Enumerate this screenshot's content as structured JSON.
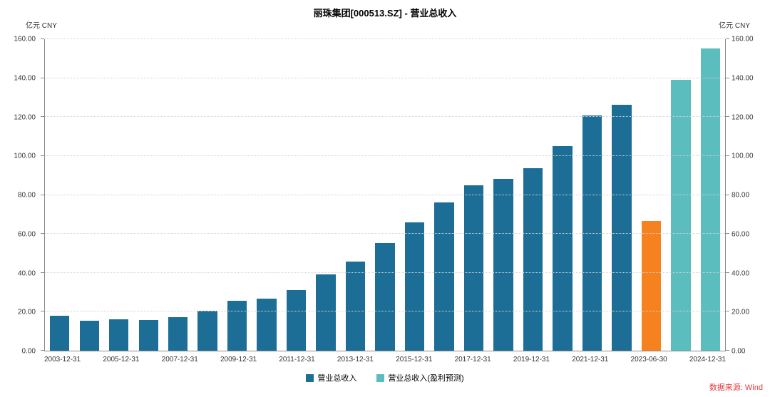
{
  "chart_data": {
    "type": "bar",
    "title": "丽珠集团[000513.SZ] - 营业总收入",
    "unit_left": "亿元 CNY",
    "unit_right": "亿元 CNY",
    "ylim": [
      0,
      160
    ],
    "yticks": [
      "0.00",
      "20.00",
      "40.00",
      "60.00",
      "80.00",
      "100.00",
      "120.00",
      "140.00",
      "160.00"
    ],
    "grid": true,
    "legend_position": "bottom",
    "series_colors": {
      "actual": "#1c6e96",
      "interim": "#f5821f",
      "forecast": "#5cbdbe"
    },
    "bars": [
      {
        "x": "2003-12-31",
        "value": 17.9,
        "series": "actual",
        "tick": true
      },
      {
        "x": "2004-12-31",
        "value": 15.3,
        "series": "actual",
        "tick": false
      },
      {
        "x": "2005-12-31",
        "value": 16.1,
        "series": "actual",
        "tick": true
      },
      {
        "x": "2006-12-31",
        "value": 15.7,
        "series": "actual",
        "tick": false
      },
      {
        "x": "2007-12-31",
        "value": 17.2,
        "series": "actual",
        "tick": true
      },
      {
        "x": "2008-12-31",
        "value": 20.5,
        "series": "actual",
        "tick": false
      },
      {
        "x": "2009-12-31",
        "value": 25.6,
        "series": "actual",
        "tick": true
      },
      {
        "x": "2010-12-31",
        "value": 26.7,
        "series": "actual",
        "tick": false
      },
      {
        "x": "2011-12-31",
        "value": 31.1,
        "series": "actual",
        "tick": true
      },
      {
        "x": "2012-12-31",
        "value": 39.1,
        "series": "actual",
        "tick": false
      },
      {
        "x": "2013-12-31",
        "value": 45.7,
        "series": "actual",
        "tick": true
      },
      {
        "x": "2014-12-31",
        "value": 55.2,
        "series": "actual",
        "tick": false
      },
      {
        "x": "2015-12-31",
        "value": 65.8,
        "series": "actual",
        "tick": true
      },
      {
        "x": "2016-12-31",
        "value": 76.3,
        "series": "actual",
        "tick": false
      },
      {
        "x": "2017-12-31",
        "value": 85.1,
        "series": "actual",
        "tick": true
      },
      {
        "x": "2018-12-31",
        "value": 88.4,
        "series": "actual",
        "tick": false
      },
      {
        "x": "2019-12-31",
        "value": 93.9,
        "series": "actual",
        "tick": true
      },
      {
        "x": "2020-12-31",
        "value": 105.2,
        "series": "actual",
        "tick": false
      },
      {
        "x": "2021-12-31",
        "value": 120.9,
        "series": "actual",
        "tick": true
      },
      {
        "x": "2022-12-31",
        "value": 126.4,
        "series": "actual",
        "tick": false
      },
      {
        "x": "2023-06-30",
        "value": 66.5,
        "series": "interim",
        "tick": true
      },
      {
        "x": "2023-12-31",
        "value": 139.2,
        "series": "forecast",
        "tick": false
      },
      {
        "x": "2024-12-31",
        "value": 155.3,
        "series": "forecast",
        "tick": true
      }
    ],
    "legend": [
      {
        "label": "营业总收入",
        "series": "actual"
      },
      {
        "label": "营业总收入(盈利预测)",
        "series": "forecast"
      }
    ],
    "source": "数据来源: Wind"
  }
}
